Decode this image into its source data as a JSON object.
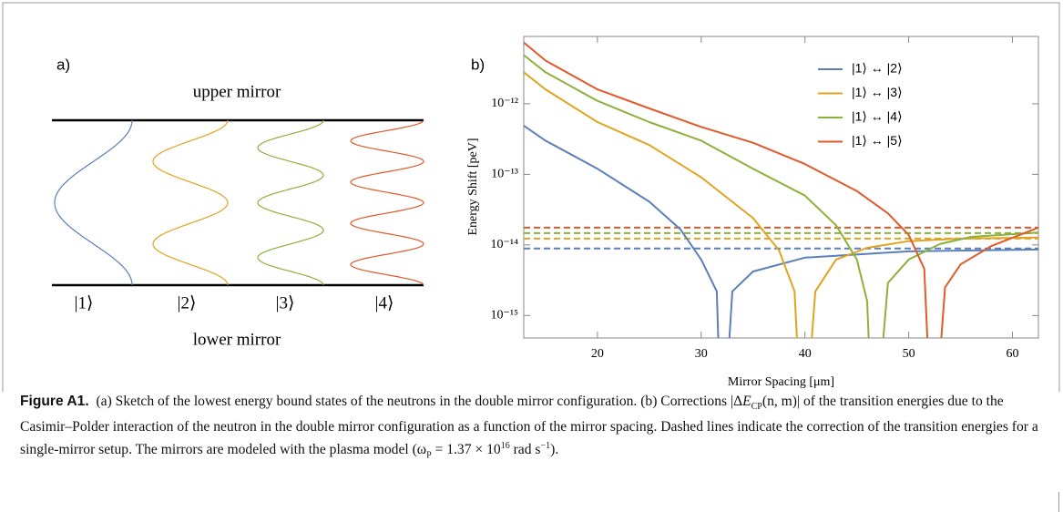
{
  "panel_a": {
    "label": "a)",
    "top_text": "upper mirror",
    "bottom_text": "lower mirror",
    "states": [
      "|1⟩",
      "|2⟩",
      "|3⟩",
      "|4⟩"
    ]
  },
  "chart_data": {
    "type": "line",
    "panel_label": "b)",
    "xlabel": "Mirror Spacing [μm]",
    "ylabel": "Energy Shift [peV]",
    "log_y": true,
    "xlim": [
      12.9,
      62.5
    ],
    "ylim": [
      4.8e-16,
      9e-12
    ],
    "xticks": [
      20,
      30,
      40,
      50,
      60
    ],
    "yticks": [
      {
        "value": 1e-12,
        "label": "10⁻¹²"
      },
      {
        "value": 1e-13,
        "label": "10⁻¹³"
      },
      {
        "value": 1e-14,
        "label": "10⁻¹⁴"
      },
      {
        "value": 1e-15,
        "label": "10⁻¹⁵"
      }
    ],
    "legend_position": "upper right",
    "series": [
      {
        "name": "|1⟩ ↔ |2⟩",
        "color": "#5b7fb8",
        "x": [
          12.9,
          15,
          20,
          25,
          28,
          30,
          31.5,
          32,
          33,
          35,
          40,
          50,
          62.5
        ],
        "values": [
          4.9e-13,
          3e-13,
          1.2e-13,
          4.1e-14,
          1.66e-14,
          6.2e-15,
          2.2e-15,
          1e-17,
          2.2e-15,
          4.2e-15,
          6.6e-15,
          8.1e-15,
          8.6e-15
        ]
      },
      {
        "name": "|1⟩ ↔ |3⟩",
        "color": "#e0a420",
        "x": [
          12.9,
          15,
          20,
          25,
          30,
          35,
          37.5,
          39,
          39.8,
          41,
          43,
          46,
          50,
          55,
          62.5
        ],
        "values": [
          2.8e-12,
          1.6e-12,
          5.5e-13,
          2.6e-13,
          9.1e-14,
          2.4e-14,
          8.4e-15,
          2.2e-15,
          1e-17,
          2.2e-15,
          6.2e-15,
          9.1e-15,
          1.13e-14,
          1.23e-14,
          1.27e-14
        ]
      },
      {
        "name": "|1⟩ ↔ |4⟩",
        "color": "#8db23b",
        "x": [
          12.9,
          15,
          20,
          25,
          30,
          35,
          40,
          43,
          45,
          46,
          46.6,
          48,
          50,
          53,
          56,
          62.5
        ],
        "values": [
          4.9e-12,
          2.8e-12,
          1.1e-12,
          5.5e-13,
          3e-13,
          1.2e-13,
          5e-14,
          1.9e-14,
          6.2e-15,
          1.6e-15,
          1e-17,
          2.9e-15,
          6.2e-15,
          1.03e-14,
          1.3e-14,
          1.5e-14
        ]
      },
      {
        "name": "|1⟩ ↔ |5⟩",
        "color": "#e05a2c",
        "x": [
          12.9,
          15,
          20,
          25,
          30,
          35,
          40,
          45,
          48,
          50,
          51.5,
          52.3,
          53.5,
          55,
          58,
          62.5
        ],
        "values": [
          7.4e-12,
          4.1e-12,
          1.6e-12,
          8.6e-13,
          4.7e-13,
          2.8e-13,
          1.4e-13,
          5.8e-14,
          2.8e-14,
          1.39e-14,
          4.6e-15,
          1e-17,
          2.5e-15,
          5.3e-15,
          9.7e-15,
          1.76e-14
        ]
      }
    ],
    "reference_lines": [
      {
        "color": "#5b7fb8",
        "value": 8.9e-15
      },
      {
        "color": "#e0a420",
        "value": 1.23e-14
      },
      {
        "color": "#8db23b",
        "value": 1.47e-14
      },
      {
        "color": "#e05a2c",
        "value": 1.76e-14
      }
    ]
  },
  "caption": {
    "label": "Figure A1.",
    "parts": [
      "(a) Sketch of the lowest energy bound states of the neutrons in the double mirror configuration. (b) Corrections |Δ",
      "E",
      "CP",
      "(n, m)| of the transition energies due to the Casimir–Polder interaction of the neutron in the double mirror configuration as a function of the mirror spacing. Dashed lines indicate the correction of the transition energies for a single-mirror setup. The mirrors are modeled with the plasma model (ω",
      "P",
      " = 1.37 × 10",
      "16",
      " rad s",
      "−1",
      ")."
    ]
  }
}
